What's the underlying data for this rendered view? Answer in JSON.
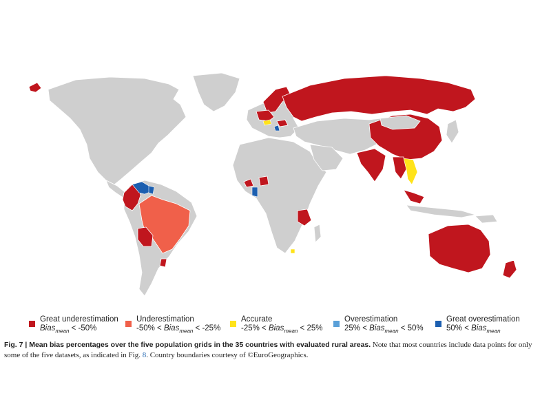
{
  "colors": {
    "land": "#cfcfcf",
    "great_underestimation": "#c0161e",
    "underestimation": "#f0604a",
    "accurate": "#ffe31a",
    "overestimation": "#5aa0d8",
    "great_overestimation": "#1c5fb0"
  },
  "legend": [
    {
      "key": "great-under",
      "label": "Great underestimation",
      "pre": "",
      "var": "Bias",
      "sub": "mean",
      "post": " < -50%",
      "color": "#c0161e"
    },
    {
      "key": "under",
      "label": "Underestimation",
      "pre": "-50% < ",
      "var": "Bias",
      "sub": "mean",
      "post": " < -25%",
      "color": "#f0604a"
    },
    {
      "key": "accurate",
      "label": "Accurate",
      "pre": "-25% < ",
      "var": "Bias",
      "sub": "mean",
      "post": " < 25%",
      "color": "#ffe31a"
    },
    {
      "key": "over",
      "label": "Overestimation",
      "pre": "25% < ",
      "var": "Bias",
      "sub": "mean",
      "post": " < 50%",
      "color": "#5aa0d8"
    },
    {
      "key": "great-over",
      "label": "Great overestimation",
      "pre": "50% < ",
      "var": "Bias",
      "sub": "mean",
      "post": "",
      "color": "#1c5fb0"
    }
  ],
  "caption": {
    "fig_label": "Fig. 7 | Mean bias percentages over the five population grids in the 35 countries with evaluated rural areas.",
    "text_before_ref": " Note that most countries include data points for only some of the five datasets, as indicated in Fig. ",
    "ref": "8",
    "text_after_ref": ". Country boundaries courtesy of ©EuroGeographics."
  }
}
